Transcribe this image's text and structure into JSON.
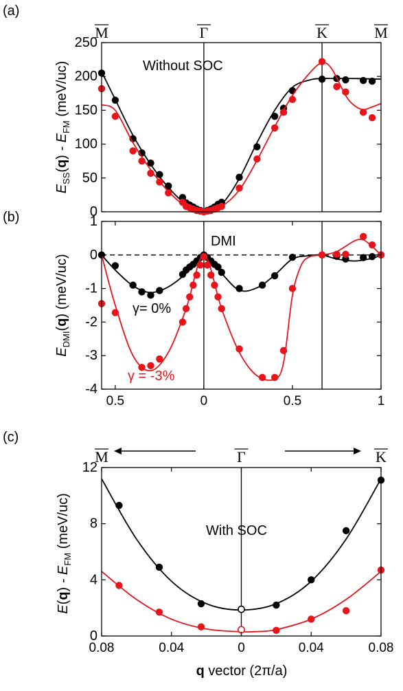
{
  "colors": {
    "black": "#000000",
    "red": "#e8141b"
  },
  "chart_data": [
    {
      "panel_label": "(a)",
      "type": "scatter",
      "ylabel_main": "E",
      "ylabel_sub1": "SS",
      "ylabel_bold": "q",
      "ylabel_mid": " - E",
      "ylabel_sub2": "FM",
      "ylabel_unit": " (meV/uc)",
      "annotation": "Without SOC",
      "ylim": [
        0,
        250
      ],
      "yticks": [
        0,
        50,
        100,
        150,
        200,
        250
      ],
      "xlim": [
        -0.577,
        1.0
      ],
      "high_symmetry_points": [
        {
          "label": "M",
          "x": -0.577
        },
        {
          "label": "Γ",
          "x": 0
        },
        {
          "label": "K",
          "x": 0.667
        },
        {
          "label": "M",
          "x": 1.0
        }
      ],
      "series": [
        {
          "color": "black",
          "points": [
            [
              -0.577,
              205
            ],
            [
              -0.5,
              165
            ],
            [
              -0.4,
              108
            ],
            [
              -0.35,
              87
            ],
            [
              -0.3,
              72
            ],
            [
              -0.25,
              55
            ],
            [
              -0.2,
              38
            ],
            [
              -0.12,
              21
            ],
            [
              -0.1,
              13
            ],
            [
              -0.08,
              10
            ],
            [
              -0.06,
              7
            ],
            [
              -0.04,
              4
            ],
            [
              -0.02,
              2
            ],
            [
              0,
              0
            ],
            [
              0.02,
              2
            ],
            [
              0.04,
              4
            ],
            [
              0.06,
              7
            ],
            [
              0.08,
              11
            ],
            [
              0.1,
              14
            ],
            [
              0.2,
              51
            ],
            [
              0.3,
              96
            ],
            [
              0.4,
              141
            ],
            [
              0.45,
              153
            ],
            [
              0.5,
              179
            ],
            [
              0.667,
              196
            ],
            [
              0.75,
              197
            ],
            [
              0.8,
              195
            ],
            [
              0.9,
              194
            ],
            [
              0.95,
              193
            ]
          ],
          "curve": [
            [
              -0.577,
              207
            ],
            [
              -0.5,
              166
            ],
            [
              -0.4,
              113
            ],
            [
              -0.3,
              70
            ],
            [
              -0.2,
              36
            ],
            [
              -0.1,
              11
            ],
            [
              0,
              0
            ],
            [
              0.1,
              11
            ],
            [
              0.2,
              49
            ],
            [
              0.3,
              102
            ],
            [
              0.4,
              150
            ],
            [
              0.5,
              184
            ],
            [
              0.6,
              195
            ],
            [
              0.667,
              197
            ],
            [
              0.75,
              197
            ],
            [
              0.85,
              197
            ],
            [
              1.0,
              196
            ]
          ]
        },
        {
          "color": "red",
          "points": [
            [
              -0.577,
              182
            ],
            [
              -0.5,
              141
            ],
            [
              -0.4,
              90
            ],
            [
              -0.35,
              75
            ],
            [
              -0.3,
              57
            ],
            [
              -0.25,
              44
            ],
            [
              -0.2,
              28
            ],
            [
              -0.12,
              14
            ],
            [
              -0.1,
              8
            ],
            [
              -0.08,
              6
            ],
            [
              -0.06,
              4
            ],
            [
              -0.04,
              2
            ],
            [
              -0.02,
              1
            ],
            [
              0,
              0
            ],
            [
              0.02,
              1
            ],
            [
              0.04,
              2
            ],
            [
              0.06,
              4
            ],
            [
              0.08,
              6
            ],
            [
              0.1,
              8
            ],
            [
              0.2,
              35
            ],
            [
              0.3,
              78
            ],
            [
              0.4,
              124
            ],
            [
              0.45,
              147
            ],
            [
              0.5,
              166
            ],
            [
              0.667,
              222
            ],
            [
              0.75,
              185
            ],
            [
              0.8,
              177
            ],
            [
              0.9,
              147
            ],
            [
              0.95,
              139
            ]
          ],
          "curve": [
            [
              -0.577,
              158
            ],
            [
              -0.5,
              150
            ],
            [
              -0.4,
              102
            ],
            [
              -0.3,
              62
            ],
            [
              -0.2,
              30
            ],
            [
              -0.1,
              8
            ],
            [
              0,
              0
            ],
            [
              0.1,
              8
            ],
            [
              0.2,
              32
            ],
            [
              0.3,
              76
            ],
            [
              0.4,
              126
            ],
            [
              0.5,
              172
            ],
            [
              0.6,
              206
            ],
            [
              0.667,
              220
            ],
            [
              0.72,
              212
            ],
            [
              0.8,
              172
            ],
            [
              0.85,
              157
            ],
            [
              0.9,
              151
            ],
            [
              0.95,
              155
            ],
            [
              1.0,
              160
            ]
          ]
        }
      ]
    },
    {
      "panel_label": "(b)",
      "type": "scatter",
      "ylabel_main": "E",
      "ylabel_sub1": "DMI",
      "ylabel_bold": "q",
      "ylabel_unit": " (meV/uc)",
      "annotation": "DMI",
      "ylim": [
        -4,
        1
      ],
      "yticks": [
        -4,
        -3,
        -2,
        -1,
        0,
        1
      ],
      "xlim": [
        -0.577,
        1.0
      ],
      "xtick_values": [
        -0.5,
        0,
        0.5,
        1
      ],
      "xtick_labels": [
        "0.5",
        "0",
        "0.5",
        "1"
      ],
      "series": [
        {
          "name": "γ= 0%",
          "color": "black",
          "points": [
            [
              -0.577,
              0
            ],
            [
              -0.5,
              -0.32
            ],
            [
              -0.4,
              -0.9
            ],
            [
              -0.35,
              -1.1
            ],
            [
              -0.3,
              -1.2
            ],
            [
              -0.25,
              -1.06
            ],
            [
              -0.12,
              -0.58
            ],
            [
              -0.1,
              -0.45
            ],
            [
              -0.08,
              -0.36
            ],
            [
              -0.06,
              -0.28
            ],
            [
              -0.04,
              -0.18
            ],
            [
              -0.02,
              -0.08
            ],
            [
              0,
              0
            ],
            [
              0.02,
              -0.08
            ],
            [
              0.04,
              -0.18
            ],
            [
              0.06,
              -0.28
            ],
            [
              0.08,
              -0.36
            ],
            [
              0.1,
              -0.52
            ],
            [
              0.2,
              -1.0
            ],
            [
              0.33,
              -0.9
            ],
            [
              0.4,
              -0.62
            ],
            [
              0.5,
              -0.07
            ],
            [
              0.667,
              0
            ],
            [
              0.75,
              -0.04
            ],
            [
              0.8,
              -0.12
            ],
            [
              0.9,
              -0.08
            ],
            [
              0.95,
              -0.05
            ],
            [
              1.0,
              0
            ]
          ],
          "curve": [
            [
              -0.577,
              0
            ],
            [
              -0.5,
              -0.45
            ],
            [
              -0.4,
              -0.92
            ],
            [
              -0.3,
              -1.12
            ],
            [
              -0.2,
              -0.95
            ],
            [
              -0.1,
              -0.55
            ],
            [
              0,
              0
            ],
            [
              0.1,
              -0.55
            ],
            [
              0.2,
              -1.05
            ],
            [
              0.3,
              -0.98
            ],
            [
              0.4,
              -0.6
            ],
            [
              0.5,
              -0.12
            ],
            [
              0.6,
              -0.02
            ],
            [
              0.667,
              0
            ],
            [
              0.75,
              -0.12
            ],
            [
              0.85,
              -0.18
            ],
            [
              0.95,
              -0.1
            ],
            [
              1.0,
              0
            ]
          ]
        },
        {
          "name": "γ = -3%",
          "color": "red",
          "points": [
            [
              -0.577,
              -1.45
            ],
            [
              -0.5,
              -1.72
            ],
            [
              -0.35,
              -3.35
            ],
            [
              -0.3,
              -3.3
            ],
            [
              -0.25,
              -3.1
            ],
            [
              -0.12,
              -2.0
            ],
            [
              -0.1,
              -1.6
            ],
            [
              -0.08,
              -1.25
            ],
            [
              -0.06,
              -0.9
            ],
            [
              -0.04,
              -0.6
            ],
            [
              -0.02,
              -0.3
            ],
            [
              0,
              -0.05
            ],
            [
              0.02,
              -0.3
            ],
            [
              0.04,
              -0.6
            ],
            [
              0.06,
              -0.9
            ],
            [
              0.08,
              -1.25
            ],
            [
              0.1,
              -1.6
            ],
            [
              0.2,
              -2.8
            ],
            [
              0.33,
              -3.65
            ],
            [
              0.4,
              -3.65
            ],
            [
              0.45,
              -2.85
            ],
            [
              0.5,
              -1.0
            ],
            [
              0.667,
              0
            ],
            [
              0.75,
              0.02
            ],
            [
              0.8,
              0.02
            ],
            [
              0.9,
              0.55
            ],
            [
              0.95,
              0.3
            ],
            [
              1.0,
              0
            ]
          ],
          "curve": [
            [
              -0.577,
              0
            ],
            [
              -0.5,
              -1.5
            ],
            [
              -0.4,
              -3.0
            ],
            [
              -0.3,
              -3.45
            ],
            [
              -0.2,
              -2.9
            ],
            [
              -0.1,
              -1.6
            ],
            [
              0,
              0
            ],
            [
              0.1,
              -1.6
            ],
            [
              0.2,
              -2.9
            ],
            [
              0.3,
              -3.6
            ],
            [
              0.4,
              -3.7
            ],
            [
              0.45,
              -3.2
            ],
            [
              0.5,
              -1.2
            ],
            [
              0.55,
              -0.3
            ],
            [
              0.6,
              -0.05
            ],
            [
              0.667,
              0
            ],
            [
              0.75,
              0.1
            ],
            [
              0.85,
              0.42
            ],
            [
              0.9,
              0.45
            ],
            [
              0.95,
              0.25
            ],
            [
              1.0,
              0
            ]
          ]
        }
      ]
    },
    {
      "panel_label": "(c)",
      "type": "scatter",
      "ylabel_main": "E",
      "ylabel_bold": "q",
      "ylabel_mid": " - E",
      "ylabel_sub2": "FM",
      "ylabel_unit": " (meV/uc)",
      "annotation": "With SOC",
      "xlabel_bold": "q",
      "xlabel_rest": " vector (2π/a)",
      "ylim": [
        0,
        12
      ],
      "yticks": [
        0,
        4,
        8,
        12
      ],
      "xlim": [
        -0.08,
        0.08
      ],
      "xtick_values": [
        -0.08,
        -0.04,
        0,
        0.04,
        0.08
      ],
      "xtick_labels": [
        "0.08",
        "0.04",
        "0",
        "0.04",
        "0.08"
      ],
      "high_symmetry_points": [
        {
          "label": "M",
          "x": -0.08
        },
        {
          "label": "Γ",
          "x": 0
        },
        {
          "label": "K",
          "x": 0.08
        }
      ],
      "series": [
        {
          "color": "black",
          "points": [
            [
              -0.07,
              9.3
            ],
            [
              -0.047,
              4.9
            ],
            [
              -0.023,
              2.3
            ],
            [
              0,
              1.9
            ],
            [
              0.02,
              2.2
            ],
            [
              0.04,
              4.0
            ],
            [
              0.06,
              7.5
            ],
            [
              0.08,
              11.1
            ]
          ],
          "open_point": [
            0,
            1.9
          ],
          "curve": [
            [
              -0.08,
              11.2
            ],
            [
              -0.06,
              6.9
            ],
            [
              -0.04,
              3.9
            ],
            [
              -0.02,
              2.3
            ],
            [
              0,
              1.85
            ],
            [
              0.02,
              2.3
            ],
            [
              0.04,
              3.9
            ],
            [
              0.06,
              6.9
            ],
            [
              0.08,
              11.2
            ]
          ]
        },
        {
          "color": "red",
          "points": [
            [
              -0.07,
              3.6
            ],
            [
              -0.047,
              1.7
            ],
            [
              -0.023,
              0.65
            ],
            [
              0,
              0.45
            ],
            [
              0.02,
              0.4
            ],
            [
              0.04,
              1.2
            ],
            [
              0.06,
              1.8
            ],
            [
              0.08,
              4.7
            ]
          ],
          "open_point": [
            0,
            0.45
          ],
          "curve": [
            [
              -0.08,
              4.6
            ],
            [
              -0.06,
              2.6
            ],
            [
              -0.04,
              1.2
            ],
            [
              -0.02,
              0.5
            ],
            [
              0,
              0.3
            ],
            [
              0.01,
              0.32
            ],
            [
              0.02,
              0.45
            ],
            [
              0.04,
              1.2
            ],
            [
              0.06,
              2.6
            ],
            [
              0.08,
              4.6
            ]
          ]
        }
      ]
    }
  ]
}
